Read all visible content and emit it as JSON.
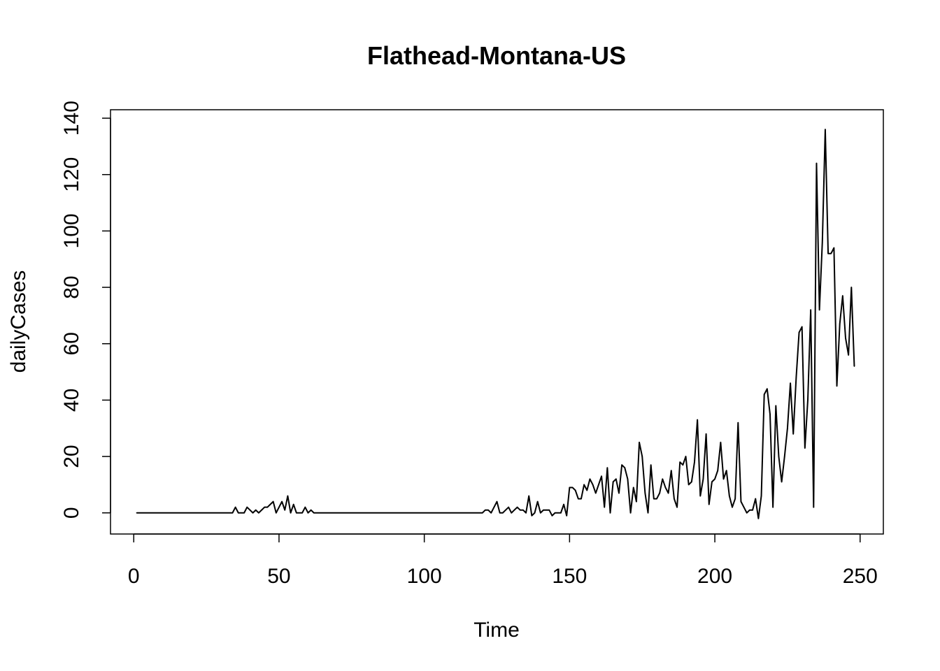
{
  "chart_data": {
    "type": "line",
    "title": "Flathead-Montana-US",
    "xlabel": "Time",
    "ylabel": "dailyCases",
    "xlim": [
      -8,
      258
    ],
    "ylim": [
      -7.5,
      143
    ],
    "xticks": [
      0,
      50,
      100,
      150,
      200,
      250
    ],
    "yticks": [
      0,
      20,
      40,
      60,
      80,
      100,
      120,
      140
    ],
    "xtick_labels": [
      "0",
      "50",
      "100",
      "150",
      "200",
      "250"
    ],
    "ytick_labels": [
      "0",
      "20",
      "40",
      "60",
      "80",
      "100",
      "120",
      "140"
    ],
    "grid": false,
    "series": [
      {
        "color": "#000000",
        "x": [
          1,
          34,
          35,
          36,
          37,
          38,
          39,
          40,
          41,
          42,
          43,
          44,
          45,
          46,
          47,
          48,
          49,
          50,
          51,
          52,
          53,
          54,
          55,
          56,
          57,
          58,
          59,
          60,
          61,
          62,
          63,
          120,
          121,
          122,
          123,
          124,
          125,
          126,
          127,
          128,
          129,
          130,
          131,
          132,
          133,
          134,
          135,
          136,
          137,
          138,
          139,
          140,
          141,
          142,
          143,
          144,
          145,
          146,
          147,
          148,
          149,
          150,
          151,
          152,
          153,
          154,
          155,
          156,
          157,
          158,
          159,
          160,
          161,
          162,
          163,
          164,
          165,
          166,
          167,
          168,
          169,
          170,
          171,
          172,
          173,
          174,
          175,
          176,
          177,
          178,
          179,
          180,
          181,
          182,
          183,
          184,
          185,
          186,
          187,
          188,
          189,
          190,
          191,
          192,
          193,
          194,
          195,
          196,
          197,
          198,
          199,
          200,
          201,
          202,
          203,
          204,
          205,
          206,
          207,
          208,
          209,
          210,
          211,
          212,
          213,
          214,
          215,
          216,
          217,
          218,
          219,
          220,
          221,
          222,
          223,
          224,
          225,
          226,
          227,
          228,
          229,
          230,
          231,
          232,
          233,
          234,
          235,
          236,
          237,
          238,
          239,
          240,
          241,
          242,
          243,
          244,
          245,
          246,
          247,
          248
        ],
        "y": [
          0,
          0,
          2,
          0,
          0,
          0,
          2,
          1,
          0,
          1,
          0,
          1,
          2,
          2,
          3,
          4,
          0,
          2,
          4,
          1,
          6,
          0,
          3,
          0,
          0,
          0,
          2,
          0,
          1,
          0,
          0,
          0,
          1,
          1,
          0,
          2,
          4,
          0,
          0,
          1,
          2,
          0,
          1,
          2,
          1,
          1,
          0,
          6,
          -1,
          0,
          4,
          0,
          1,
          1,
          1,
          -1,
          0,
          0,
          0,
          3,
          -1,
          9,
          9,
          8,
          5,
          5,
          10,
          8,
          12,
          10,
          7,
          10,
          13,
          2,
          16,
          0,
          11,
          12,
          7,
          17,
          16,
          12,
          0,
          9,
          4,
          25,
          20,
          7,
          0,
          17,
          5,
          5,
          7,
          12,
          9,
          7,
          15,
          5,
          2,
          18,
          17,
          20,
          10,
          11,
          18,
          33,
          6,
          12,
          28,
          3,
          11,
          12,
          15,
          25,
          12,
          15,
          6,
          2,
          5,
          32,
          4,
          2,
          0,
          1,
          1,
          5,
          -2,
          6,
          42,
          44,
          35,
          2,
          38,
          20,
          11,
          20,
          30,
          46,
          28,
          48,
          64,
          66,
          23,
          40,
          72,
          2,
          124,
          72,
          96,
          136,
          92,
          92,
          94,
          45,
          67,
          77,
          62,
          56,
          80,
          52
        ]
      }
    ]
  }
}
